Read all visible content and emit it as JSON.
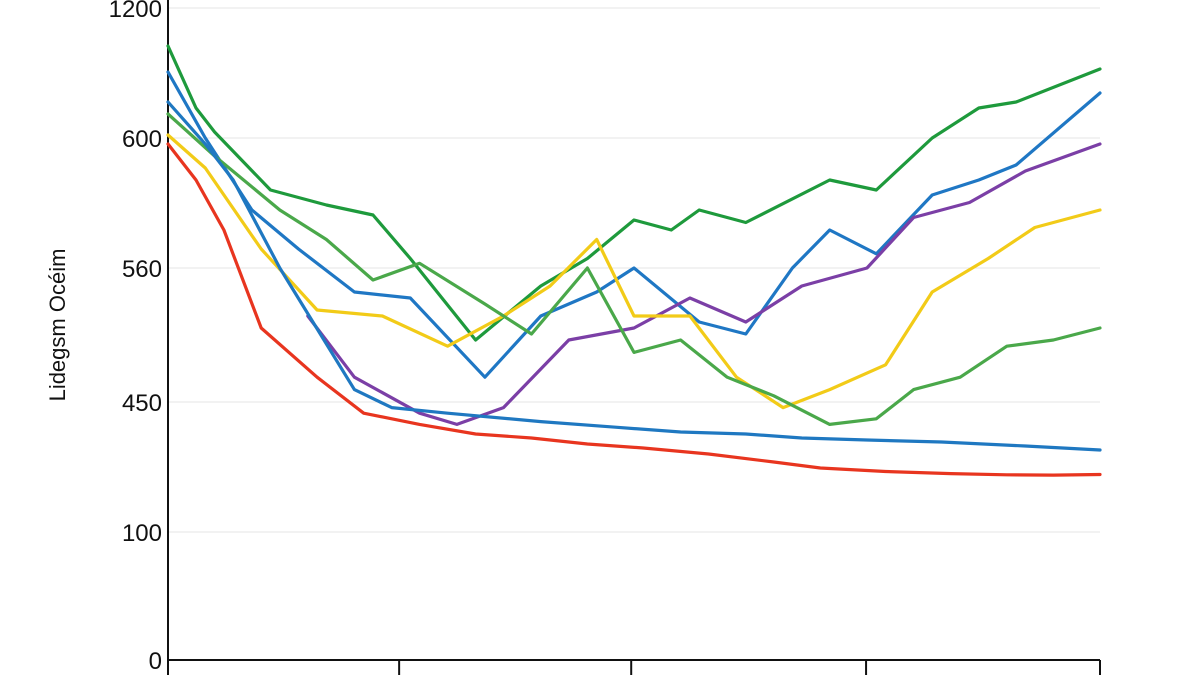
{
  "chart_data": {
    "type": "line",
    "ylabel": "Lidegsm Océim",
    "y_ticks": [
      {
        "value": 0,
        "label": "0"
      },
      {
        "value": 100,
        "label": "100"
      },
      {
        "value": 450,
        "label": "450"
      },
      {
        "value": 560,
        "label": "560"
      },
      {
        "value": 600,
        "label": "600"
      },
      {
        "value": 1200,
        "label": "1200"
      }
    ],
    "x": [
      0,
      0.05,
      0.11,
      0.17,
      0.22,
      0.26,
      0.31,
      0.35,
      0.4,
      0.43,
      0.47,
      0.51,
      0.55,
      0.6,
      0.65,
      0.71,
      0.77,
      0.82,
      0.87,
      0.93,
      1.0
    ],
    "grid": true,
    "legend": "none",
    "series": [
      {
        "color": "#1e9a3c",
        "points": [
          [
            0,
            935
          ],
          [
            0.03,
            820
          ],
          [
            0.05,
            780
          ],
          [
            0.11,
            680
          ],
          [
            0.17,
            650
          ],
          [
            0.22,
            630
          ],
          [
            0.26,
            570
          ],
          [
            0.33,
            500
          ],
          [
            0.4,
            545
          ],
          [
            0.45,
            570
          ],
          [
            0.5,
            620
          ],
          [
            0.54,
            600
          ],
          [
            0.57,
            640
          ],
          [
            0.62,
            615
          ],
          [
            0.71,
            700
          ],
          [
            0.76,
            680
          ],
          [
            0.82,
            770
          ],
          [
            0.87,
            820
          ],
          [
            0.91,
            830
          ],
          [
            1.0,
            885
          ]
        ]
      },
      {
        "color": "#1f77c4",
        "points": [
          [
            0,
            880
          ],
          [
            0.04,
            770
          ],
          [
            0.09,
            640
          ],
          [
            0.14,
            580
          ],
          [
            0.2,
            540
          ],
          [
            0.26,
            535
          ],
          [
            0.34,
            470
          ],
          [
            0.4,
            520
          ],
          [
            0.46,
            540
          ],
          [
            0.5,
            560
          ],
          [
            0.57,
            515
          ],
          [
            0.62,
            505
          ],
          [
            0.67,
            560
          ],
          [
            0.71,
            600
          ],
          [
            0.76,
            575
          ],
          [
            0.82,
            670
          ],
          [
            0.87,
            700
          ],
          [
            0.91,
            725
          ],
          [
            1.0,
            845
          ]
        ]
      },
      {
        "color": "#7b3fa6",
        "points": [
          [
            0.15,
            520
          ],
          [
            0.2,
            470
          ],
          [
            0.27,
            430
          ],
          [
            0.31,
            410
          ],
          [
            0.36,
            440
          ],
          [
            0.43,
            500
          ],
          [
            0.5,
            510
          ],
          [
            0.56,
            535
          ],
          [
            0.62,
            515
          ],
          [
            0.68,
            545
          ],
          [
            0.75,
            560
          ],
          [
            0.8,
            625
          ],
          [
            0.86,
            655
          ],
          [
            0.92,
            715
          ],
          [
            1.0,
            760
          ]
        ]
      },
      {
        "color": "#f2cb18",
        "points": [
          [
            0,
            775
          ],
          [
            0.04,
            720
          ],
          [
            0.1,
            580
          ],
          [
            0.16,
            525
          ],
          [
            0.23,
            520
          ],
          [
            0.3,
            495
          ],
          [
            0.36,
            520
          ],
          [
            0.41,
            545
          ],
          [
            0.46,
            590
          ],
          [
            0.5,
            520
          ],
          [
            0.56,
            520
          ],
          [
            0.61,
            470
          ],
          [
            0.66,
            440
          ],
          [
            0.71,
            460
          ],
          [
            0.77,
            480
          ],
          [
            0.82,
            540
          ],
          [
            0.88,
            570
          ],
          [
            0.93,
            605
          ],
          [
            1.0,
            640
          ]
        ]
      },
      {
        "color": "#4aa84a",
        "points": [
          [
            0,
            810
          ],
          [
            0.05,
            740
          ],
          [
            0.12,
            640
          ],
          [
            0.17,
            590
          ],
          [
            0.22,
            550
          ],
          [
            0.27,
            565
          ],
          [
            0.34,
            530
          ],
          [
            0.39,
            505
          ],
          [
            0.45,
            560
          ],
          [
            0.5,
            490
          ],
          [
            0.55,
            500
          ],
          [
            0.6,
            470
          ],
          [
            0.65,
            455
          ],
          [
            0.71,
            410
          ],
          [
            0.76,
            420
          ],
          [
            0.8,
            460
          ],
          [
            0.85,
            470
          ],
          [
            0.9,
            495
          ],
          [
            0.95,
            500
          ],
          [
            1.0,
            510
          ]
        ]
      },
      {
        "color": "#1f78c1",
        "points": [
          [
            0,
            830
          ],
          [
            0.04,
            760
          ],
          [
            0.07,
            700
          ],
          [
            0.12,
            560
          ],
          [
            0.2,
            460
          ],
          [
            0.24,
            440
          ],
          [
            0.3,
            430
          ],
          [
            0.4,
            415
          ],
          [
            0.48,
            405
          ],
          [
            0.55,
            395
          ],
          [
            0.62,
            390
          ],
          [
            0.68,
            380
          ],
          [
            0.75,
            375
          ],
          [
            0.83,
            370
          ],
          [
            0.92,
            360
          ],
          [
            1.0,
            350
          ]
        ]
      },
      {
        "color": "#e8351f",
        "points": [
          [
            0,
            760
          ],
          [
            0.03,
            700
          ],
          [
            0.06,
            600
          ],
          [
            0.1,
            510
          ],
          [
            0.16,
            470
          ],
          [
            0.21,
            430
          ],
          [
            0.27,
            410
          ],
          [
            0.33,
            390
          ],
          [
            0.39,
            380
          ],
          [
            0.45,
            365
          ],
          [
            0.51,
            355
          ],
          [
            0.58,
            340
          ],
          [
            0.65,
            320
          ],
          [
            0.7,
            305
          ],
          [
            0.77,
            295
          ],
          [
            0.84,
            288
          ],
          [
            0.9,
            284
          ],
          [
            0.95,
            283
          ],
          [
            1.0,
            285
          ]
        ]
      }
    ]
  }
}
